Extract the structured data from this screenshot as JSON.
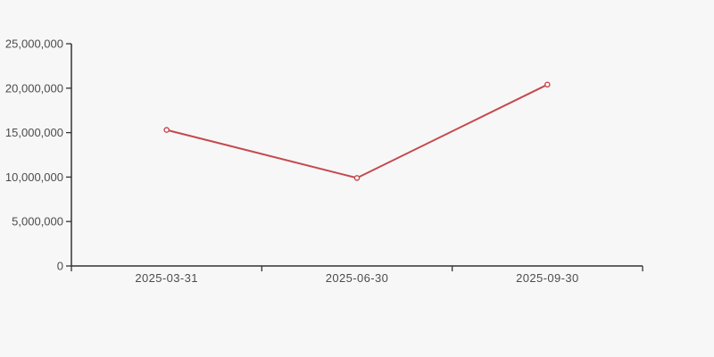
{
  "page": {
    "background_color": "#f7f7f7",
    "axis_color": "#333333",
    "label_color": "#4c4c4c"
  },
  "chart_data": {
    "type": "line",
    "title": "",
    "xlabel": "",
    "ylabel": "",
    "categories": [
      "2025-03-31",
      "2025-06-30",
      "2025-09-30"
    ],
    "values": [
      15300000,
      9900000,
      20400000
    ],
    "ylim": [
      0,
      25000000
    ],
    "yticks": {
      "values": [
        0,
        5000000,
        10000000,
        15000000,
        20000000,
        25000000
      ],
      "labels": [
        "0",
        "5,000,000",
        "10,000,000",
        "15,000,000",
        "20,000,000",
        "25,000,000"
      ]
    },
    "grid": false,
    "legend": false,
    "line_color": "#c5494e",
    "marker": "open-circle",
    "marker_fill": "#fcfcfc"
  }
}
